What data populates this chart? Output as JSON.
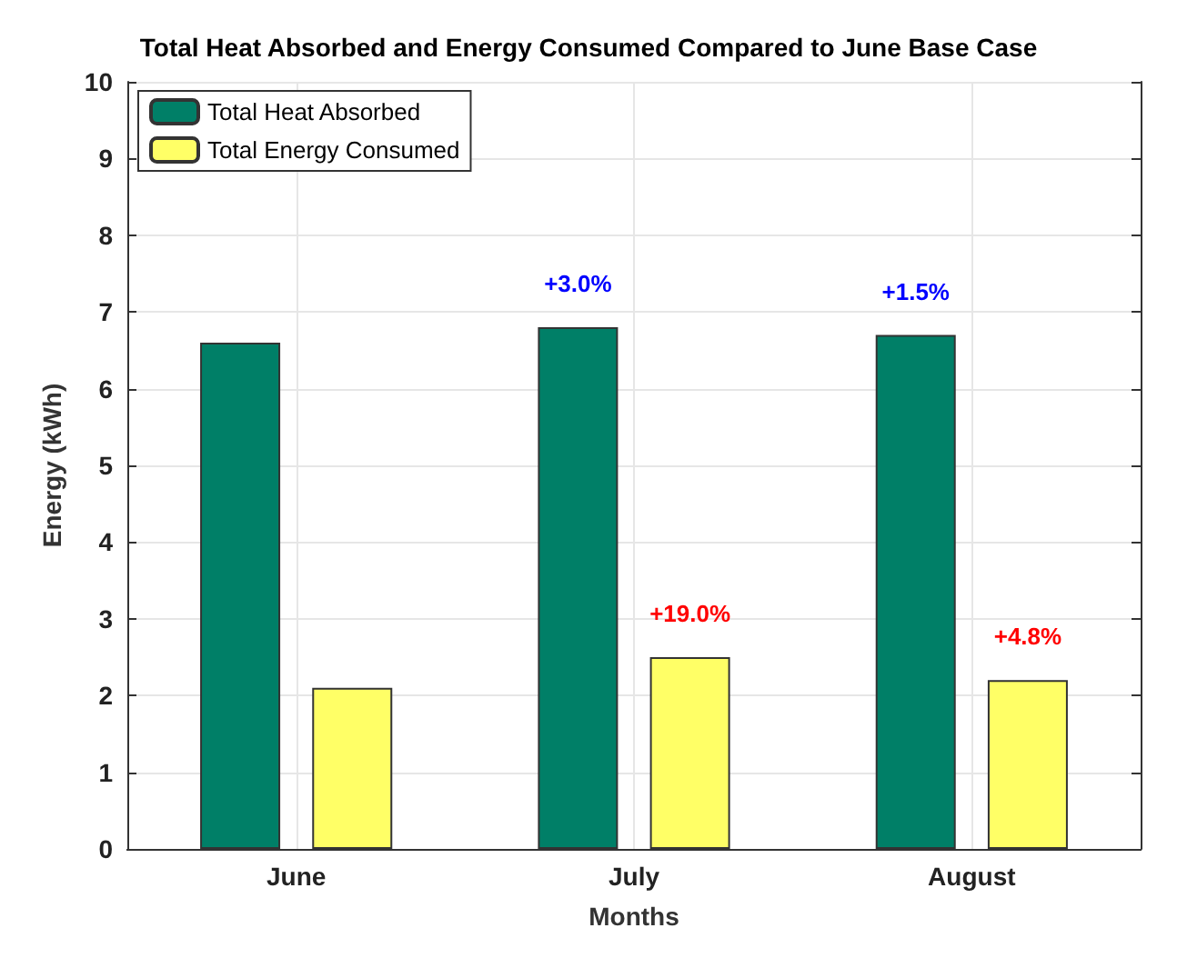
{
  "chart_data": {
    "type": "bar",
    "title": "Total Heat Absorbed and Energy Consumed Compared to June Base Case",
    "xlabel": "Months",
    "ylabel": "Energy (kWh)",
    "categories": [
      "June",
      "July",
      "August"
    ],
    "series": [
      {
        "name": "Total Heat Absorbed",
        "color": "#007f67",
        "values": [
          6.6,
          6.8,
          6.7
        ]
      },
      {
        "name": "Total Energy Consumed",
        "color": "#ffff66",
        "values": [
          2.1,
          2.5,
          2.2
        ]
      }
    ],
    "annotations": [
      "+3.0%",
      "+1.5%",
      "+19.0%",
      "+4.8%"
    ],
    "ylim": [
      0,
      10
    ],
    "yticks": [
      0,
      1,
      2,
      3,
      4,
      5,
      6,
      7,
      8,
      9,
      10
    ],
    "grid": true,
    "legend": "top left"
  }
}
